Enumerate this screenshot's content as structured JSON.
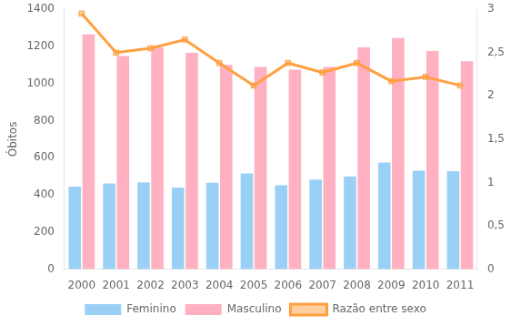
{
  "chart_data": {
    "type": "bar",
    "ylabel": "Óbitos",
    "categories": [
      "2000",
      "2001",
      "2002",
      "2003",
      "2004",
      "2005",
      "2006",
      "2007",
      "2008",
      "2009",
      "2010",
      "2011"
    ],
    "series": [
      {
        "name": "Feminino",
        "type": "bar",
        "values": [
          445,
          462,
          468,
          440,
          465,
          515,
          452,
          483,
          500,
          575,
          530,
          528
        ]
      },
      {
        "name": "Masculino",
        "type": "bar",
        "values": [
          1265,
          1148,
          1195,
          1165,
          1100,
          1090,
          1075,
          1090,
          1195,
          1245,
          1175,
          1120
        ]
      },
      {
        "name": "Razão entre sexo",
        "type": "line",
        "axis": "y2",
        "marker": "square",
        "line_style": "solid",
        "values": [
          2.95,
          2.5,
          2.55,
          2.65,
          2.38,
          2.12,
          2.38,
          2.27,
          2.38,
          2.17,
          2.22,
          2.12
        ]
      }
    ],
    "ylim": [
      0,
      1400
    ],
    "yticks": [
      0,
      200,
      400,
      600,
      800,
      1000,
      1200,
      1400
    ],
    "y2lim": [
      0,
      3.0
    ],
    "y2ticks": [
      0,
      {
        "value": 0.5,
        "label": "0,5"
      },
      1,
      {
        "value": 1.5,
        "label": "1,5"
      },
      2,
      {
        "value": 2.5,
        "label": "2,5"
      },
      3
    ],
    "grid": false,
    "legend": "bottom"
  }
}
